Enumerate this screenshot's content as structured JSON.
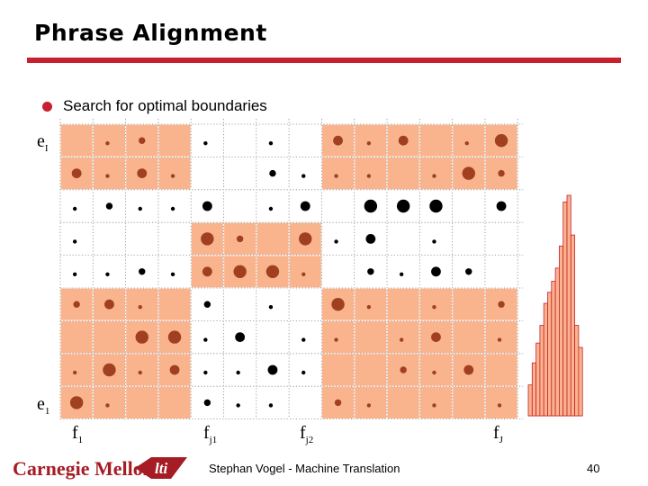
{
  "slide": {
    "title": "Phrase Alignment",
    "bullet": "Search for optimal boundaries",
    "footer_center": "Stephan Vogel - Machine Translation",
    "footer_page": "40",
    "footer_brand": "Carnegie Mellon",
    "footer_logo_text": "lti"
  },
  "colors": {
    "accent": "#c8202f",
    "highlight": "#f9b48d",
    "dot_in": "#a0401f",
    "dot_out": "#000000",
    "bar_fill": "#f9b48d",
    "bar_stroke": "#c8202f"
  },
  "axes": {
    "y_top": {
      "base": "e",
      "sub": "I"
    },
    "y_bottom": {
      "base": "e",
      "sub": "1"
    },
    "x": [
      {
        "base": "f",
        "sub": "1"
      },
      {
        "base": "f",
        "sub": "j1"
      },
      {
        "base": "f",
        "sub": "j2"
      },
      {
        "base": "f",
        "sub": "J"
      }
    ]
  },
  "matrix": {
    "cols": 14,
    "rows": 9,
    "highlight_blocks": [
      {
        "cols": [
          0,
          3
        ],
        "rows": [
          0,
          1
        ]
      },
      {
        "cols": [
          4,
          7
        ],
        "rows": [
          3,
          4
        ]
      },
      {
        "cols": [
          8,
          13
        ],
        "rows": [
          0,
          1
        ]
      },
      {
        "cols": [
          0,
          3
        ],
        "rows": [
          5,
          8
        ]
      },
      {
        "cols": [
          8,
          13
        ],
        "rows": [
          5,
          8
        ]
      }
    ],
    "points": [
      [
        1,
        0,
        1
      ],
      [
        2,
        0,
        2
      ],
      [
        4,
        0,
        1
      ],
      [
        6,
        0,
        1
      ],
      [
        8,
        0,
        3
      ],
      [
        9,
        0,
        1
      ],
      [
        10,
        0,
        3
      ],
      [
        12,
        0,
        1
      ],
      [
        13,
        0,
        4
      ],
      [
        0,
        1,
        3
      ],
      [
        1,
        1,
        1
      ],
      [
        2,
        1,
        3
      ],
      [
        3,
        1,
        1
      ],
      [
        6,
        1,
        2
      ],
      [
        7,
        1,
        1
      ],
      [
        8,
        1,
        1
      ],
      [
        9,
        1,
        1
      ],
      [
        11,
        1,
        1
      ],
      [
        12,
        1,
        4
      ],
      [
        13,
        1,
        2
      ],
      [
        0,
        2,
        1
      ],
      [
        1,
        2,
        2
      ],
      [
        2,
        2,
        1
      ],
      [
        3,
        2,
        1
      ],
      [
        4,
        2,
        3
      ],
      [
        6,
        2,
        1
      ],
      [
        7,
        2,
        3
      ],
      [
        9,
        2,
        4
      ],
      [
        10,
        2,
        4
      ],
      [
        11,
        2,
        4
      ],
      [
        13,
        2,
        3
      ],
      [
        0,
        3,
        1
      ],
      [
        4,
        3,
        4
      ],
      [
        5,
        3,
        2
      ],
      [
        7,
        3,
        4
      ],
      [
        8,
        3,
        1
      ],
      [
        9,
        3,
        3
      ],
      [
        11,
        3,
        1
      ],
      [
        0,
        4,
        1
      ],
      [
        1,
        4,
        1
      ],
      [
        2,
        4,
        2
      ],
      [
        3,
        4,
        1
      ],
      [
        4,
        4,
        3
      ],
      [
        5,
        4,
        4
      ],
      [
        6,
        4,
        4
      ],
      [
        7,
        4,
        1
      ],
      [
        9,
        4,
        2
      ],
      [
        10,
        4,
        1
      ],
      [
        11,
        4,
        3
      ],
      [
        12,
        4,
        2
      ],
      [
        0,
        5,
        2
      ],
      [
        1,
        5,
        3
      ],
      [
        2,
        5,
        1
      ],
      [
        4,
        5,
        2
      ],
      [
        6,
        5,
        1
      ],
      [
        8,
        5,
        4
      ],
      [
        9,
        5,
        1
      ],
      [
        11,
        5,
        1
      ],
      [
        13,
        5,
        2
      ],
      [
        2,
        6,
        4
      ],
      [
        3,
        6,
        4
      ],
      [
        4,
        6,
        1
      ],
      [
        5,
        6,
        3
      ],
      [
        7,
        6,
        1
      ],
      [
        8,
        6,
        1
      ],
      [
        10,
        6,
        1
      ],
      [
        11,
        6,
        3
      ],
      [
        13,
        6,
        1
      ],
      [
        0,
        7,
        1
      ],
      [
        1,
        7,
        4
      ],
      [
        2,
        7,
        1
      ],
      [
        3,
        7,
        3
      ],
      [
        4,
        7,
        1
      ],
      [
        5,
        7,
        1
      ],
      [
        6,
        7,
        3
      ],
      [
        7,
        7,
        1
      ],
      [
        10,
        7,
        2
      ],
      [
        11,
        7,
        1
      ],
      [
        12,
        7,
        3
      ],
      [
        0,
        8,
        4
      ],
      [
        1,
        8,
        1
      ],
      [
        4,
        8,
        2
      ],
      [
        5,
        8,
        1
      ],
      [
        6,
        8,
        1
      ],
      [
        8,
        8,
        2
      ],
      [
        9,
        8,
        1
      ],
      [
        11,
        8,
        1
      ],
      [
        13,
        8,
        1
      ]
    ]
  },
  "histogram": {
    "values": [
      0.14,
      0.24,
      0.33,
      0.41,
      0.51,
      0.56,
      0.61,
      0.67,
      0.77,
      0.97,
      1.0,
      0.82,
      0.41,
      0.31
    ]
  }
}
